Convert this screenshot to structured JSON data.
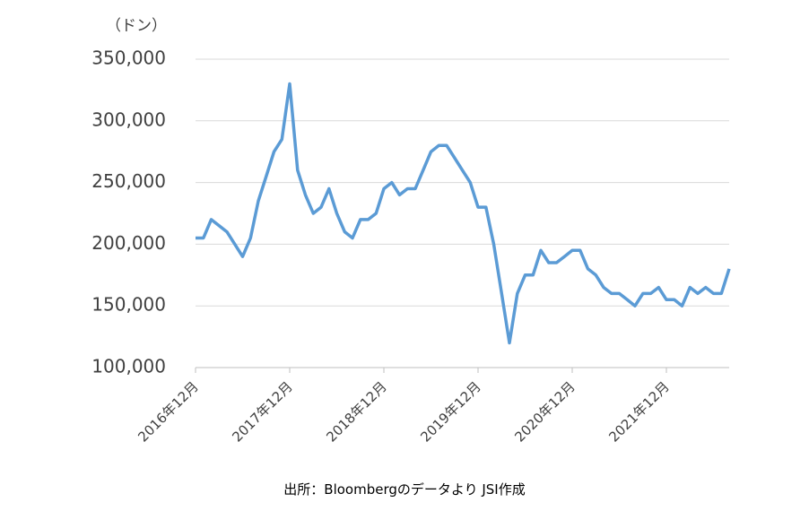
{
  "chart_data": {
    "type": "line",
    "unit_label": "（ドン）",
    "source": "出所：Bloombergのデータより JSI作成",
    "categories": [
      "2016年12月",
      null,
      null,
      null,
      null,
      null,
      null,
      null,
      null,
      null,
      null,
      null,
      "2017年12月",
      null,
      null,
      null,
      null,
      null,
      null,
      null,
      null,
      null,
      null,
      null,
      "2018年12月",
      null,
      null,
      null,
      null,
      null,
      null,
      null,
      null,
      null,
      null,
      null,
      "2019年12月",
      null,
      null,
      null,
      null,
      null,
      null,
      null,
      null,
      null,
      null,
      null,
      "2020年12月",
      null,
      null,
      null,
      null,
      null,
      null,
      null,
      null,
      null,
      null,
      null,
      "2021年12月",
      null,
      null,
      null,
      null,
      null,
      null,
      null,
      null
    ],
    "series": [
      {
        "color": "#5b9bd5",
        "values": [
          205000,
          205000,
          220000,
          215000,
          210000,
          200000,
          190000,
          205000,
          235000,
          255000,
          275000,
          285000,
          330000,
          260000,
          240000,
          225000,
          230000,
          245000,
          225000,
          210000,
          205000,
          220000,
          220000,
          225000,
          245000,
          250000,
          240000,
          245000,
          245000,
          260000,
          275000,
          280000,
          280000,
          270000,
          260000,
          250000,
          230000,
          230000,
          200000,
          160000,
          120000,
          160000,
          175000,
          175000,
          195000,
          185000,
          185000,
          190000,
          195000,
          195000,
          180000,
          175000,
          165000,
          160000,
          160000,
          155000,
          150000,
          160000,
          160000,
          165000,
          155000,
          155000,
          150000,
          165000,
          160000,
          165000,
          160000,
          160000,
          180000
        ]
      }
    ],
    "ylim": [
      100000,
      350000
    ],
    "yticks": [
      {
        "value": 100000,
        "label": "100,000"
      },
      {
        "value": 150000,
        "label": "150,000"
      },
      {
        "value": 200000,
        "label": "200,000"
      },
      {
        "value": 250000,
        "label": "250,000"
      },
      {
        "value": 300000,
        "label": "300,000"
      },
      {
        "value": 350000,
        "label": "350,000"
      }
    ],
    "grid": true
  }
}
